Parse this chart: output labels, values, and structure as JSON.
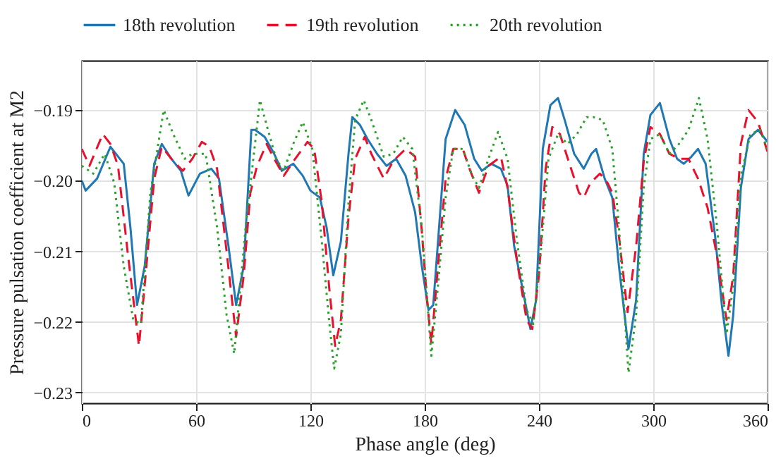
{
  "chart_data": {
    "type": "line",
    "xlabel": "Phase angle (deg)",
    "ylabel": "Pressure pulsation coefficient at M2",
    "xlim": [
      0,
      360
    ],
    "xticks": [
      0,
      60,
      120,
      180,
      240,
      300,
      360
    ],
    "ylim": [
      -0.2315,
      -0.183
    ],
    "yticks": [
      {
        "value": -0.19,
        "label": "−0.19"
      },
      {
        "value": -0.2,
        "label": "−0.20"
      },
      {
        "value": -0.21,
        "label": "−0.21"
      },
      {
        "value": -0.22,
        "label": "−0.22"
      },
      {
        "value": -0.23,
        "label": "−0.23"
      }
    ],
    "grid": true,
    "legend": "top",
    "marker": "none",
    "series": [
      {
        "name": "18th revolution",
        "color": "#1f77b4",
        "line_style": "solid",
        "x": [
          0,
          2,
          8,
          15,
          22,
          25.5,
          29,
          33,
          38,
          42,
          47,
          52,
          56,
          62,
          68,
          72,
          77,
          81,
          85,
          89,
          91,
          96,
          101,
          105,
          111,
          116,
          120,
          125,
          128.5,
          132,
          136,
          140,
          142,
          146,
          150,
          155,
          160,
          165,
          170,
          175,
          178.5,
          182,
          184.5,
          187,
          191,
          196,
          201,
          206,
          210,
          215,
          220,
          223.5,
          227,
          231,
          235.5,
          238.5,
          242,
          246,
          250,
          253.5,
          258.5,
          263.5,
          267.5,
          270,
          274.5,
          278.5,
          282,
          287,
          291,
          295,
          298.5,
          303.5,
          308.5,
          312.5,
          316,
          320,
          323.5,
          327.5,
          332.5,
          336,
          339.5,
          342,
          346,
          350,
          355,
          360
        ],
        "values": [
          -0.2,
          -0.2014,
          -0.1997,
          -0.1952,
          -0.1976,
          -0.2066,
          -0.2176,
          -0.2121,
          -0.1976,
          -0.1948,
          -0.1969,
          -0.1986,
          -0.2021,
          -0.199,
          -0.1983,
          -0.1997,
          -0.2093,
          -0.2176,
          -0.2121,
          -0.1928,
          -0.1928,
          -0.1938,
          -0.1962,
          -0.1986,
          -0.1976,
          -0.1993,
          -0.2014,
          -0.2024,
          -0.2066,
          -0.2134,
          -0.2086,
          -0.1962,
          -0.191,
          -0.1921,
          -0.1941,
          -0.1962,
          -0.1979,
          -0.1969,
          -0.1993,
          -0.2045,
          -0.2121,
          -0.2183,
          -0.2176,
          -0.2086,
          -0.1941,
          -0.19,
          -0.1921,
          -0.1969,
          -0.1986,
          -0.1976,
          -0.1983,
          -0.2007,
          -0.2093,
          -0.2148,
          -0.221,
          -0.2169,
          -0.1955,
          -0.1893,
          -0.1883,
          -0.1914,
          -0.1962,
          -0.1983,
          -0.1962,
          -0.1955,
          -0.1997,
          -0.2024,
          -0.2121,
          -0.2238,
          -0.2169,
          -0.1962,
          -0.1907,
          -0.189,
          -0.1941,
          -0.1969,
          -0.1976,
          -0.1966,
          -0.1955,
          -0.1976,
          -0.2079,
          -0.2176,
          -0.2248,
          -0.219,
          -0.201,
          -0.1941,
          -0.1928,
          -0.1945
        ]
      },
      {
        "name": "19th revolution",
        "color": "#e8112d",
        "line_style": "dashed",
        "x": [
          0,
          4,
          11,
          15,
          19,
          24,
          30,
          33,
          38,
          42,
          47,
          53,
          58,
          63,
          67,
          71,
          76,
          81,
          85,
          88.5,
          92,
          97,
          101,
          106,
          112,
          118.5,
          122,
          126,
          130,
          133,
          136,
          140,
          143.5,
          148.5,
          152,
          158.5,
          163.5,
          170,
          175,
          178.5,
          181,
          183.5,
          187,
          191,
          195,
          200,
          203.5,
          208.5,
          213.5,
          220,
          223.5,
          228.5,
          233.5,
          236.5,
          240,
          243.5,
          247,
          251,
          256,
          261,
          263.5,
          267,
          272,
          276,
          278.5,
          282,
          286.5,
          291,
          295,
          298.5,
          303.5,
          308.5,
          313.5,
          318.5,
          323.5,
          328.5,
          333.5,
          338.5,
          342,
          346,
          350,
          355,
          360
        ],
        "values": [
          -0.1955,
          -0.1979,
          -0.1934,
          -0.1948,
          -0.1979,
          -0.21,
          -0.2234,
          -0.2148,
          -0.1997,
          -0.1952,
          -0.1969,
          -0.1986,
          -0.1969,
          -0.1945,
          -0.1952,
          -0.1983,
          -0.21,
          -0.2221,
          -0.2134,
          -0.2017,
          -0.1979,
          -0.1948,
          -0.1969,
          -0.1993,
          -0.1969,
          -0.1945,
          -0.1955,
          -0.2031,
          -0.2155,
          -0.2234,
          -0.2197,
          -0.2052,
          -0.1969,
          -0.1938,
          -0.1962,
          -0.1997,
          -0.1972,
          -0.1955,
          -0.1966,
          -0.2072,
          -0.2162,
          -0.2231,
          -0.2121,
          -0.1997,
          -0.1955,
          -0.1955,
          -0.1983,
          -0.2017,
          -0.1979,
          -0.1966,
          -0.201,
          -0.2114,
          -0.2197,
          -0.221,
          -0.2134,
          -0.1983,
          -0.1924,
          -0.1934,
          -0.1976,
          -0.2017,
          -0.2024,
          -0.2003,
          -0.199,
          -0.2003,
          -0.2017,
          -0.2079,
          -0.2186,
          -0.2093,
          -0.1972,
          -0.1924,
          -0.1934,
          -0.1962,
          -0.1969,
          -0.1969,
          -0.1997,
          -0.2038,
          -0.2107,
          -0.2197,
          -0.2134,
          -0.1948,
          -0.19,
          -0.1917,
          -0.1959
        ]
      },
      {
        "name": "20th revolution",
        "color": "#2ca02c",
        "line_style": "dotted",
        "x": [
          0,
          6,
          12,
          17,
          22,
          27,
          31,
          36,
          43,
          48,
          54,
          58,
          65,
          71,
          76,
          80,
          86,
          93.5,
          97,
          102,
          106,
          111,
          116,
          121,
          126,
          130,
          132.5,
          136,
          140,
          143.5,
          148,
          152,
          158.5,
          163.5,
          168.5,
          173.5,
          178.5,
          183.5,
          187,
          191,
          195,
          200,
          205,
          208.5,
          213.5,
          218.5,
          223.5,
          228.5,
          233.5,
          237,
          241,
          245,
          250,
          255,
          260,
          265,
          268.5,
          273.5,
          278.5,
          282,
          287,
          291,
          295,
          298.5,
          303.5,
          308.5,
          313.5,
          318.5,
          324,
          328.5,
          333.5,
          338.5,
          342,
          346,
          351,
          356,
          360
        ],
        "values": [
          -0.1979,
          -0.199,
          -0.1962,
          -0.2003,
          -0.2121,
          -0.2197,
          -0.2203,
          -0.2017,
          -0.19,
          -0.1934,
          -0.1969,
          -0.1962,
          -0.1962,
          -0.2066,
          -0.219,
          -0.2245,
          -0.2066,
          -0.1886,
          -0.1921,
          -0.1969,
          -0.1986,
          -0.1948,
          -0.1917,
          -0.1955,
          -0.2086,
          -0.2203,
          -0.2266,
          -0.2217,
          -0.2031,
          -0.1914,
          -0.1886,
          -0.1914,
          -0.1966,
          -0.1962,
          -0.1938,
          -0.1955,
          -0.2066,
          -0.2248,
          -0.2148,
          -0.2024,
          -0.1955,
          -0.1955,
          -0.1993,
          -0.201,
          -0.1969,
          -0.1931,
          -0.1969,
          -0.2086,
          -0.2183,
          -0.2203,
          -0.21,
          -0.1969,
          -0.1934,
          -0.1948,
          -0.1934,
          -0.191,
          -0.191,
          -0.1914,
          -0.1955,
          -0.2066,
          -0.2272,
          -0.219,
          -0.201,
          -0.1941,
          -0.1934,
          -0.1962,
          -0.1948,
          -0.1928,
          -0.1883,
          -0.1941,
          -0.2066,
          -0.2217,
          -0.2148,
          -0.1993,
          -0.1934,
          -0.1928,
          -0.1955
        ]
      }
    ]
  }
}
